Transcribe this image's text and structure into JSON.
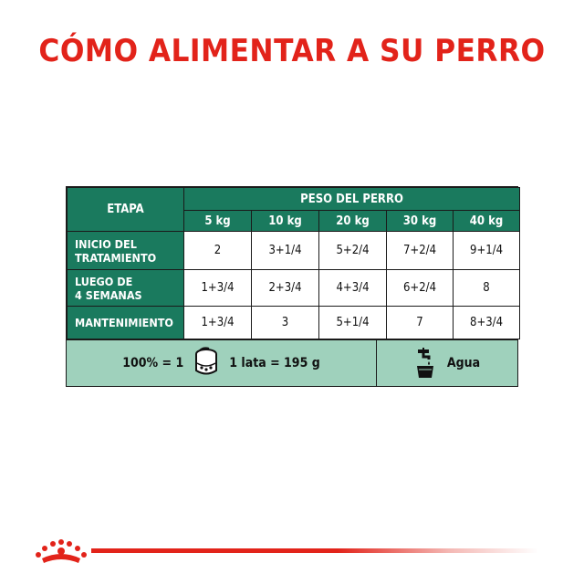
{
  "title": "CÓMO ALIMENTAR A SU PERRO",
  "table": {
    "stage_header": "ETAPA",
    "weight_header": "PESO DEL PERRO",
    "weights": [
      "5 kg",
      "10 kg",
      "20 kg",
      "30 kg",
      "40 kg"
    ],
    "rows": [
      {
        "stage_line1": "INICIO DEL",
        "stage_line2": "TRATAMIENTO",
        "values": [
          "2",
          "3+1/4",
          "5+2/4",
          "7+2/4",
          "9+1/4"
        ]
      },
      {
        "stage_line1": "LUEGO DE",
        "stage_line2": "4 SEMANAS",
        "values": [
          "1+3/4",
          "2+3/4",
          "4+3/4",
          "6+2/4",
          "8"
        ]
      },
      {
        "stage_line1": "MANTENIMIENTO",
        "stage_line2": "",
        "values": [
          "1+3/4",
          "3",
          "5+1/4",
          "7",
          "8+3/4"
        ]
      }
    ]
  },
  "footer": {
    "ratio": "100% = 1",
    "can": "1 lata = 195 g",
    "water": "Agua"
  },
  "icons": {
    "can": "wet-food-can-icon",
    "water": "water-tap-icon",
    "logo": "royal-crown-logo"
  },
  "colors": {
    "title_red": "#e2231a",
    "header_green": "#1a7a5e",
    "footer_mint": "#9fd1bc"
  }
}
